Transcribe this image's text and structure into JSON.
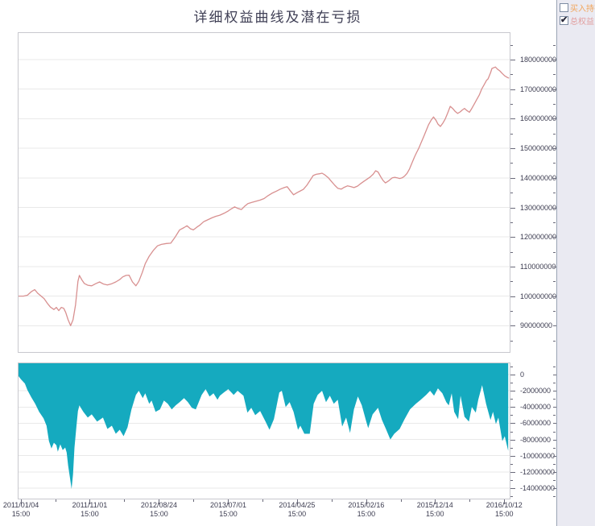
{
  "page": {
    "title_note": "title lives in chart_data.0.title"
  },
  "colors": {
    "equity_line": "#d89090",
    "drawdown_fill": "#15aabf",
    "grid": "#e9e9e9",
    "plot_border": "#c8c8ce",
    "axis_text": "#3c3c50",
    "tick": "#6a6a7a",
    "panel_bg": "#eaeaf2",
    "panel_border": "#9aa5b5",
    "title_text": "#3f3f55"
  },
  "legend": {
    "items": [
      {
        "label": "买入持有",
        "checked": false,
        "color": "#f2a55a"
      },
      {
        "label": "总权益",
        "checked": true,
        "color": "#e2a0a0"
      }
    ]
  },
  "chart_data": [
    {
      "type": "line",
      "title": "详细权益曲线及潜在亏损",
      "series_name": "总权益",
      "color": "#d89090",
      "grid": "horizontal",
      "value_unit": 1000000,
      "ylim": [
        81100000,
        189000000
      ],
      "y_ticks": [
        {
          "v": 180000000,
          "label": "180000000"
        },
        {
          "v": 170000000,
          "label": "170000000"
        },
        {
          "v": 160000000,
          "label": "160000000"
        },
        {
          "v": 150000000,
          "label": "150000000"
        },
        {
          "v": 140000000,
          "label": "140000000"
        },
        {
          "v": 130000000,
          "label": "130000000"
        },
        {
          "v": 120000000,
          "label": "120000000"
        },
        {
          "v": 110000000,
          "label": "110000000"
        },
        {
          "v": 100000000,
          "label": "100000000"
        },
        {
          "v": 90000000,
          "label": "90000000"
        }
      ],
      "points": [
        [
          0,
          100
        ],
        [
          0.01,
          100
        ],
        [
          0.018,
          100.3
        ],
        [
          0.026,
          101.5
        ],
        [
          0.033,
          102.2
        ],
        [
          0.039,
          101
        ],
        [
          0.046,
          100
        ],
        [
          0.052,
          99.2
        ],
        [
          0.059,
          97.5
        ],
        [
          0.065,
          96.3
        ],
        [
          0.072,
          95.5
        ],
        [
          0.077,
          96.2
        ],
        [
          0.082,
          95.1
        ],
        [
          0.087,
          96.2
        ],
        [
          0.092,
          95.9
        ],
        [
          0.096,
          94.5
        ],
        [
          0.101,
          92
        ],
        [
          0.106,
          90
        ],
        [
          0.111,
          92
        ],
        [
          0.116,
          97
        ],
        [
          0.121,
          105
        ],
        [
          0.124,
          107
        ],
        [
          0.129,
          105.5
        ],
        [
          0.134,
          104.3
        ],
        [
          0.141,
          103.7
        ],
        [
          0.149,
          103.5
        ],
        [
          0.157,
          104.2
        ],
        [
          0.165,
          104.8
        ],
        [
          0.173,
          104.1
        ],
        [
          0.181,
          103.8
        ],
        [
          0.19,
          104.2
        ],
        [
          0.198,
          104.8
        ],
        [
          0.206,
          105.6
        ],
        [
          0.212,
          106.5
        ],
        [
          0.219,
          107
        ],
        [
          0.225,
          107.1
        ],
        [
          0.232,
          104.8
        ],
        [
          0.239,
          103.5
        ],
        [
          0.245,
          105
        ],
        [
          0.252,
          108
        ],
        [
          0.258,
          111
        ],
        [
          0.266,
          113.5
        ],
        [
          0.275,
          115.6
        ],
        [
          0.283,
          117
        ],
        [
          0.291,
          117.5
        ],
        [
          0.301,
          117.8
        ],
        [
          0.31,
          117.9
        ],
        [
          0.319,
          120
        ],
        [
          0.328,
          122.4
        ],
        [
          0.337,
          123.2
        ],
        [
          0.343,
          123.8
        ],
        [
          0.35,
          122.8
        ],
        [
          0.356,
          122.4
        ],
        [
          0.363,
          123.3
        ],
        [
          0.369,
          124
        ],
        [
          0.377,
          125.2
        ],
        [
          0.386,
          125.9
        ],
        [
          0.394,
          126.5
        ],
        [
          0.402,
          127
        ],
        [
          0.41,
          127.4
        ],
        [
          0.418,
          128
        ],
        [
          0.427,
          128.8
        ],
        [
          0.433,
          129.5
        ],
        [
          0.44,
          130.2
        ],
        [
          0.446,
          129.7
        ],
        [
          0.454,
          129.3
        ],
        [
          0.461,
          130.5
        ],
        [
          0.467,
          131.3
        ],
        [
          0.475,
          131.7
        ],
        [
          0.484,
          132.1
        ],
        [
          0.492,
          132.5
        ],
        [
          0.5,
          133
        ],
        [
          0.508,
          134
        ],
        [
          0.516,
          134.8
        ],
        [
          0.525,
          135.5
        ],
        [
          0.533,
          136.2
        ],
        [
          0.541,
          136.7
        ],
        [
          0.547,
          137
        ],
        [
          0.554,
          135.5
        ],
        [
          0.56,
          134.3
        ],
        [
          0.567,
          135
        ],
        [
          0.574,
          135.6
        ],
        [
          0.58,
          136.1
        ],
        [
          0.587,
          137.5
        ],
        [
          0.593,
          139
        ],
        [
          0.6,
          140.8
        ],
        [
          0.606,
          141.2
        ],
        [
          0.613,
          141.4
        ],
        [
          0.618,
          141.6
        ],
        [
          0.624,
          141
        ],
        [
          0.631,
          140
        ],
        [
          0.637,
          138.8
        ],
        [
          0.644,
          137.5
        ],
        [
          0.65,
          136.5
        ],
        [
          0.657,
          136.2
        ],
        [
          0.663,
          136.8
        ],
        [
          0.67,
          137.3
        ],
        [
          0.677,
          137
        ],
        [
          0.683,
          136.7
        ],
        [
          0.69,
          137.2
        ],
        [
          0.696,
          138
        ],
        [
          0.703,
          138.8
        ],
        [
          0.709,
          139.5
        ],
        [
          0.716,
          140.3
        ],
        [
          0.722,
          141.2
        ],
        [
          0.727,
          142.4
        ],
        [
          0.732,
          142
        ],
        [
          0.737,
          140.5
        ],
        [
          0.742,
          139.2
        ],
        [
          0.747,
          138.3
        ],
        [
          0.752,
          138.8
        ],
        [
          0.757,
          139.5
        ],
        [
          0.761,
          140
        ],
        [
          0.766,
          140.2
        ],
        [
          0.771,
          140
        ],
        [
          0.776,
          139.8
        ],
        [
          0.781,
          140
        ],
        [
          0.786,
          140.6
        ],
        [
          0.791,
          141.5
        ],
        [
          0.796,
          143
        ],
        [
          0.801,
          145
        ],
        [
          0.806,
          147
        ],
        [
          0.81,
          148.4
        ],
        [
          0.815,
          150
        ],
        [
          0.82,
          152
        ],
        [
          0.825,
          154
        ],
        [
          0.83,
          156
        ],
        [
          0.835,
          158
        ],
        [
          0.84,
          159.5
        ],
        [
          0.845,
          160.6
        ],
        [
          0.85,
          159.5
        ],
        [
          0.854,
          158.2
        ],
        [
          0.859,
          157.4
        ],
        [
          0.864,
          158.5
        ],
        [
          0.869,
          160
        ],
        [
          0.874,
          162
        ],
        [
          0.879,
          164.2
        ],
        [
          0.884,
          163.5
        ],
        [
          0.889,
          162.5
        ],
        [
          0.894,
          161.8
        ],
        [
          0.899,
          162.3
        ],
        [
          0.904,
          163
        ],
        [
          0.908,
          163.5
        ],
        [
          0.913,
          162.8
        ],
        [
          0.918,
          162.2
        ],
        [
          0.923,
          163.5
        ],
        [
          0.928,
          165
        ],
        [
          0.933,
          166.5
        ],
        [
          0.938,
          168
        ],
        [
          0.943,
          170
        ],
        [
          0.948,
          171.5
        ],
        [
          0.953,
          173
        ],
        [
          0.956,
          173.5
        ],
        [
          0.961,
          175.5
        ],
        [
          0.964,
          177
        ],
        [
          0.971,
          177.5
        ],
        [
          0.975,
          176.8
        ],
        [
          0.98,
          176.2
        ],
        [
          0.985,
          175.3
        ],
        [
          0.99,
          174.5
        ],
        [
          0.995,
          174
        ],
        [
          0.998,
          173.8
        ]
      ]
    },
    {
      "type": "area",
      "series_name": "潜在亏损",
      "color": "#15aabf",
      "grid": "horizontal",
      "baseline": "top",
      "value_unit": 1000000,
      "ylim": [
        -15290000,
        1390000
      ],
      "y_ticks": [
        {
          "v": 0,
          "label": "0"
        },
        {
          "v": -2000000,
          "label": "-2000000"
        },
        {
          "v": -4000000,
          "label": "-4000000"
        },
        {
          "v": -6000000,
          "label": "-6000000"
        },
        {
          "v": -8000000,
          "label": "-8000000"
        },
        {
          "v": -10000000,
          "label": "-10000000"
        },
        {
          "v": -12000000,
          "label": "-12000000"
        },
        {
          "v": -14000000,
          "label": "-14000000"
        }
      ],
      "x_ticks": [
        {
          "date": "2011/01/04",
          "time": "15:00",
          "f": 0.005
        },
        {
          "date": "2011/11/01",
          "time": "15:00",
          "f": 0.145
        },
        {
          "date": "2012/08/24",
          "time": "15:00",
          "f": 0.286
        },
        {
          "date": "2013/07/01",
          "time": "15:00",
          "f": 0.427
        },
        {
          "date": "2014/04/25",
          "time": "15:00",
          "f": 0.567
        },
        {
          "date": "2015/02/16",
          "time": "15:00",
          "f": 0.708
        },
        {
          "date": "2015/12/14",
          "time": "15:00",
          "f": 0.848
        },
        {
          "date": "2016/10/12",
          "time": "15:00",
          "f": 0.989
        }
      ],
      "points": [
        [
          0,
          -0.2
        ],
        [
          0.005,
          -0.6
        ],
        [
          0.013,
          -1.1
        ],
        [
          0.018,
          -1.9
        ],
        [
          0.026,
          -2.8
        ],
        [
          0.034,
          -3.6
        ],
        [
          0.042,
          -4.6
        ],
        [
          0.051,
          -5.4
        ],
        [
          0.057,
          -6.3
        ],
        [
          0.062,
          -8.2
        ],
        [
          0.067,
          -9.1
        ],
        [
          0.072,
          -8.4
        ],
        [
          0.077,
          -8.7
        ],
        [
          0.08,
          -9.5
        ],
        [
          0.085,
          -8.6
        ],
        [
          0.09,
          -9.3
        ],
        [
          0.095,
          -9
        ],
        [
          0.098,
          -9.6
        ],
        [
          0.101,
          -11.2
        ],
        [
          0.105,
          -12.8
        ],
        [
          0.108,
          -14.1
        ],
        [
          0.111,
          -12.3
        ],
        [
          0.114,
          -9
        ],
        [
          0.118,
          -6.3
        ],
        [
          0.121,
          -4.5
        ],
        [
          0.124,
          -3.8
        ],
        [
          0.132,
          -4.6
        ],
        [
          0.141,
          -5.3
        ],
        [
          0.149,
          -4.9
        ],
        [
          0.16,
          -5.8
        ],
        [
          0.172,
          -5.3
        ],
        [
          0.181,
          -6.7
        ],
        [
          0.19,
          -6.3
        ],
        [
          0.198,
          -7.3
        ],
        [
          0.206,
          -6.8
        ],
        [
          0.214,
          -7.6
        ],
        [
          0.222,
          -6.5
        ],
        [
          0.23,
          -4.3
        ],
        [
          0.239,
          -2.5
        ],
        [
          0.245,
          -2
        ],
        [
          0.253,
          -2.9
        ],
        [
          0.258,
          -2.3
        ],
        [
          0.266,
          -3.6
        ],
        [
          0.271,
          -3.2
        ],
        [
          0.279,
          -4.6
        ],
        [
          0.288,
          -4.3
        ],
        [
          0.296,
          -3.2
        ],
        [
          0.304,
          -3.6
        ],
        [
          0.312,
          -4.3
        ],
        [
          0.32,
          -3.8
        ],
        [
          0.328,
          -3.4
        ],
        [
          0.337,
          -2.9
        ],
        [
          0.345,
          -3.4
        ],
        [
          0.353,
          -4.1
        ],
        [
          0.361,
          -4.3
        ],
        [
          0.373,
          -2.5
        ],
        [
          0.381,
          -1.8
        ],
        [
          0.389,
          -2.7
        ],
        [
          0.397,
          -2.3
        ],
        [
          0.405,
          -3.1
        ],
        [
          0.41,
          -2.6
        ],
        [
          0.418,
          -2.2
        ],
        [
          0.427,
          -1.8
        ],
        [
          0.438,
          -2.5
        ],
        [
          0.446,
          -2
        ],
        [
          0.458,
          -2.6
        ],
        [
          0.466,
          -4.7
        ],
        [
          0.474,
          -4.1
        ],
        [
          0.482,
          -5
        ],
        [
          0.492,
          -4.5
        ],
        [
          0.503,
          -5.8
        ],
        [
          0.511,
          -6.8
        ],
        [
          0.52,
          -5.5
        ],
        [
          0.531,
          -2.2
        ],
        [
          0.536,
          -2
        ],
        [
          0.544,
          -4
        ],
        [
          0.552,
          -3.4
        ],
        [
          0.56,
          -4.6
        ],
        [
          0.569,
          -6.8
        ],
        [
          0.574,
          -6.3
        ],
        [
          0.582,
          -7.3
        ],
        [
          0.593,
          -7.3
        ],
        [
          0.601,
          -3.6
        ],
        [
          0.609,
          -2.5
        ],
        [
          0.618,
          -2
        ],
        [
          0.626,
          -3.4
        ],
        [
          0.634,
          -2.6
        ],
        [
          0.642,
          -3.6
        ],
        [
          0.65,
          -3.1
        ],
        [
          0.659,
          -6.4
        ],
        [
          0.667,
          -5.3
        ],
        [
          0.675,
          -7.2
        ],
        [
          0.683,
          -4.3
        ],
        [
          0.691,
          -2.7
        ],
        [
          0.699,
          -3.8
        ],
        [
          0.708,
          -5.8
        ],
        [
          0.712,
          -6.6
        ],
        [
          0.721,
          -4.9
        ],
        [
          0.732,
          -4.1
        ],
        [
          0.74,
          -5.6
        ],
        [
          0.748,
          -6.7
        ],
        [
          0.757,
          -8
        ],
        [
          0.765,
          -7.3
        ],
        [
          0.776,
          -6.7
        ],
        [
          0.786,
          -5.5
        ],
        [
          0.797,
          -4.3
        ],
        [
          0.809,
          -3.6
        ],
        [
          0.819,
          -3.1
        ],
        [
          0.83,
          -2.5
        ],
        [
          0.838,
          -2
        ],
        [
          0.846,
          -2.6
        ],
        [
          0.854,
          -1.7
        ],
        [
          0.863,
          -2.3
        ],
        [
          0.871,
          -3.4
        ],
        [
          0.876,
          -3.8
        ],
        [
          0.882,
          -2.3
        ],
        [
          0.887,
          -4.6
        ],
        [
          0.895,
          -5.5
        ],
        [
          0.9,
          -2.6
        ],
        [
          0.908,
          -5.2
        ],
        [
          0.917,
          -5.8
        ],
        [
          0.923,
          -4
        ],
        [
          0.931,
          -4.7
        ],
        [
          0.936,
          -3.1
        ],
        [
          0.944,
          -1.3
        ],
        [
          0.952,
          -3.6
        ],
        [
          0.961,
          -5.6
        ],
        [
          0.966,
          -4.6
        ],
        [
          0.972,
          -6.1
        ],
        [
          0.977,
          -5.3
        ],
        [
          0.985,
          -8.2
        ],
        [
          0.99,
          -7.6
        ],
        [
          0.997,
          -9.4
        ]
      ]
    }
  ]
}
